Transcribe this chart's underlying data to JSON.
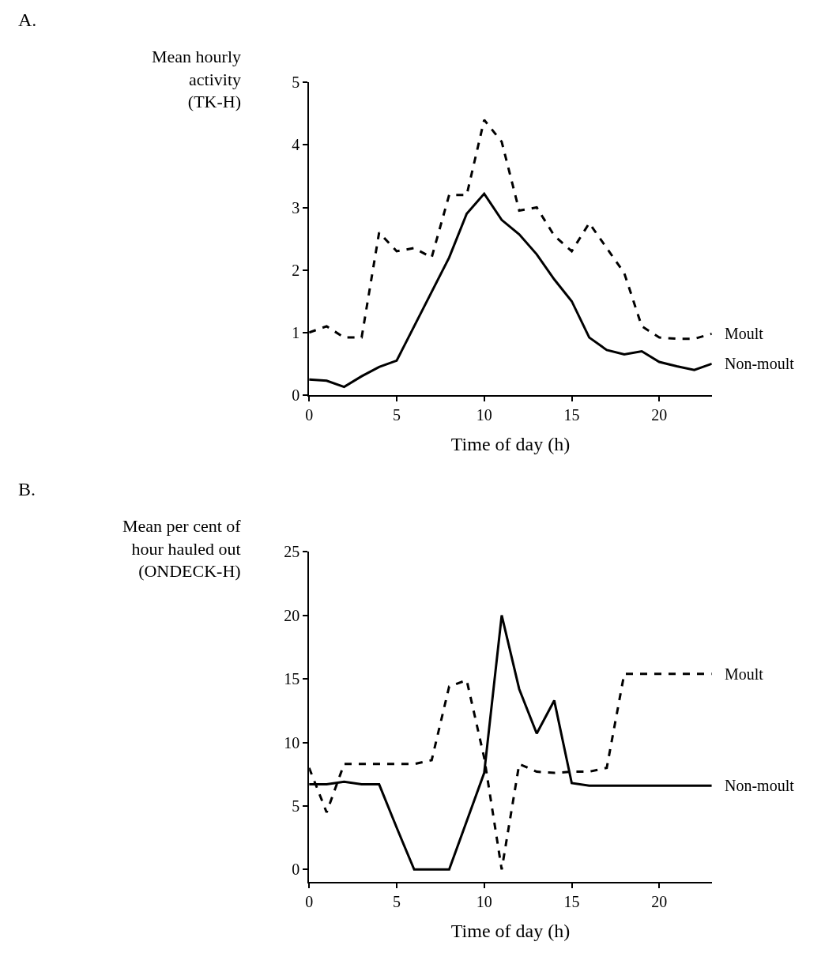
{
  "chart_data": [
    {
      "type": "line",
      "annotations": [
        "A."
      ],
      "xlabel": "Time of day (h)",
      "ylabel": "Mean hourly\nactivity\n(TK-H)",
      "x": [
        0,
        1,
        2,
        3,
        4,
        5,
        6,
        7,
        8,
        9,
        10,
        11,
        12,
        13,
        14,
        15,
        16,
        17,
        18,
        19,
        20,
        21,
        22,
        23
      ],
      "series": [
        {
          "name": "Moult",
          "color": "#000000",
          "line_style": "dashed",
          "values": [
            1.0,
            1.1,
            0.92,
            0.92,
            2.6,
            2.3,
            2.35,
            2.2,
            3.2,
            3.2,
            4.4,
            4.05,
            2.95,
            3.0,
            2.55,
            2.3,
            2.75,
            2.35,
            1.95,
            1.1,
            0.92,
            0.9,
            0.9,
            0.98
          ]
        },
        {
          "name": "Non-moult",
          "color": "#000000",
          "line_style": "solid",
          "values": [
            0.25,
            0.23,
            0.13,
            0.3,
            0.45,
            0.55,
            1.1,
            1.65,
            2.2,
            2.9,
            3.22,
            2.8,
            2.57,
            2.25,
            1.85,
            1.5,
            0.92,
            0.72,
            0.65,
            0.7,
            0.53,
            0.46,
            0.4,
            0.5
          ]
        }
      ],
      "xlim": [
        0,
        23
      ],
      "xticks": [
        0,
        5,
        10,
        15,
        20
      ],
      "ylim": [
        0,
        5
      ],
      "yticks": [
        0,
        1,
        2,
        3,
        4,
        5
      ],
      "legend": false,
      "marker": "none"
    },
    {
      "type": "line",
      "annotations": [
        "B."
      ],
      "xlabel": "Time of day (h)",
      "ylabel": "Mean per cent of\nhour hauled out\n(ONDECK-H)",
      "x": [
        0,
        1,
        2,
        3,
        4,
        5,
        6,
        7,
        8,
        9,
        10,
        11,
        12,
        13,
        14,
        15,
        16,
        17,
        18,
        19,
        20,
        21,
        22,
        23
      ],
      "series": [
        {
          "name": "Moult",
          "color": "#000000",
          "line_style": "dashed",
          "values": [
            8.0,
            4.5,
            8.3,
            8.3,
            8.3,
            8.3,
            8.3,
            8.6,
            14.4,
            14.9,
            8.8,
            0,
            8.3,
            7.7,
            7.6,
            7.7,
            7.7,
            8.0,
            15.4,
            15.4,
            15.4,
            15.4,
            15.4,
            15.4
          ]
        },
        {
          "name": "Non-moult",
          "color": "#000000",
          "line_style": "solid",
          "values": [
            6.7,
            6.7,
            6.9,
            6.7,
            6.7,
            3.3,
            0,
            0,
            0,
            3.8,
            7.6,
            20,
            14.2,
            10.7,
            13.3,
            6.8,
            6.6,
            6.6,
            6.6,
            6.6,
            6.6,
            6.6,
            6.6,
            6.6
          ]
        }
      ],
      "xlim": [
        0,
        23
      ],
      "xticks": [
        0,
        5,
        10,
        15,
        20
      ],
      "ylim": [
        -1,
        25
      ],
      "yticks": [
        0,
        5,
        10,
        15,
        20,
        25
      ],
      "legend": false,
      "marker": "none"
    }
  ]
}
